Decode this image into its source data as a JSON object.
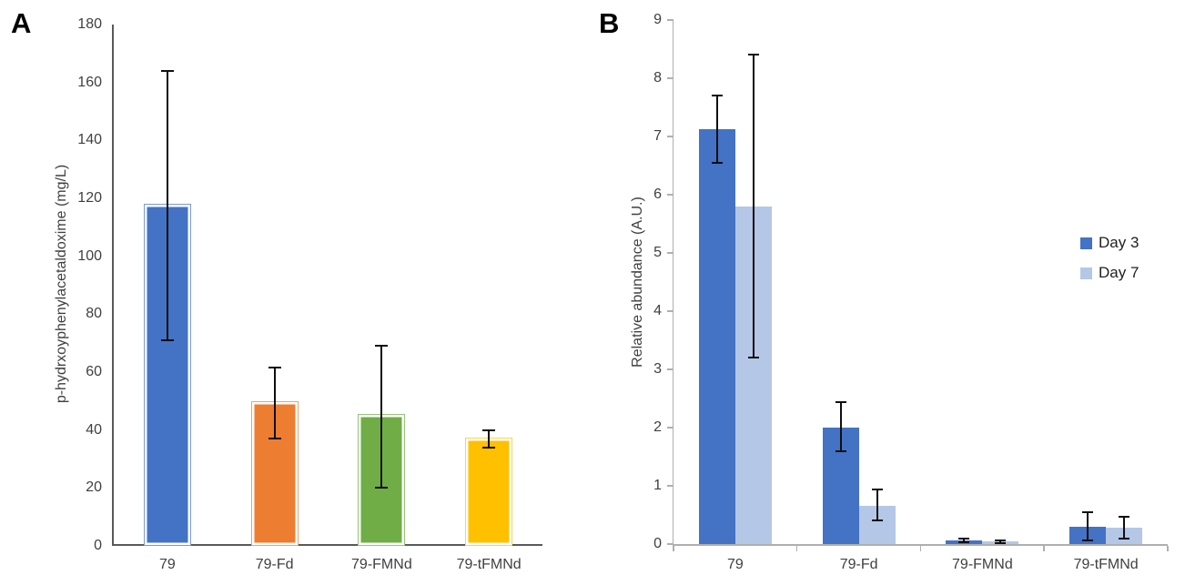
{
  "figure_title": "",
  "chart_data": [
    {
      "panel_label": "A",
      "type": "bar",
      "title": "",
      "xlabel": "",
      "ylabel": "p-hydrxoyphenylacetaldoxime (mg/L)",
      "categories": [
        "79",
        "79-Fd",
        "79-FMNd",
        "79-tFMNd"
      ],
      "values": [
        118,
        50,
        45.5,
        37.5
      ],
      "error_low": [
        71,
        37,
        20,
        34
      ],
      "error_high": [
        164,
        61.5,
        69,
        40
      ],
      "ylim": [
        0,
        180
      ],
      "ytick_step": 20,
      "grid": false,
      "legend_position": "none",
      "bar_colors": [
        "#4472C4",
        "#ED7D31",
        "#70AD47",
        "#FFC000"
      ],
      "bar_border_colors": [
        "#7A9AD6",
        "#F2A06B",
        "#95C478",
        "#FFD34D"
      ],
      "error_bar_color": "#0f0f0f",
      "axis_color": "#595959"
    },
    {
      "panel_label": "B",
      "type": "bar",
      "title": "",
      "xlabel": "",
      "ylabel": "Relative abundance (A.U.)",
      "categories": [
        "79",
        "79-Fd",
        "79-FMNd",
        "79-tFMNd"
      ],
      "series": [
        {
          "name": "Day 3",
          "color": "#4472C4",
          "values": [
            7.12,
            2.0,
            0.06,
            0.3
          ],
          "error_low": [
            6.55,
            1.6,
            0.03,
            0.06
          ],
          "error_high": [
            7.7,
            2.43,
            0.09,
            0.55
          ]
        },
        {
          "name": "Day 7",
          "color": "#B4C7E7",
          "values": [
            5.8,
            0.66,
            0.04,
            0.28
          ],
          "error_low": [
            3.2,
            0.4,
            0.02,
            0.1
          ],
          "error_high": [
            8.4,
            0.93,
            0.06,
            0.47
          ]
        }
      ],
      "ylim": [
        0,
        9
      ],
      "ytick_step": 1,
      "grid": false,
      "legend_position": "right",
      "error_bar_color": "#0f0f0f",
      "axis_color": "#afafaf"
    }
  ]
}
